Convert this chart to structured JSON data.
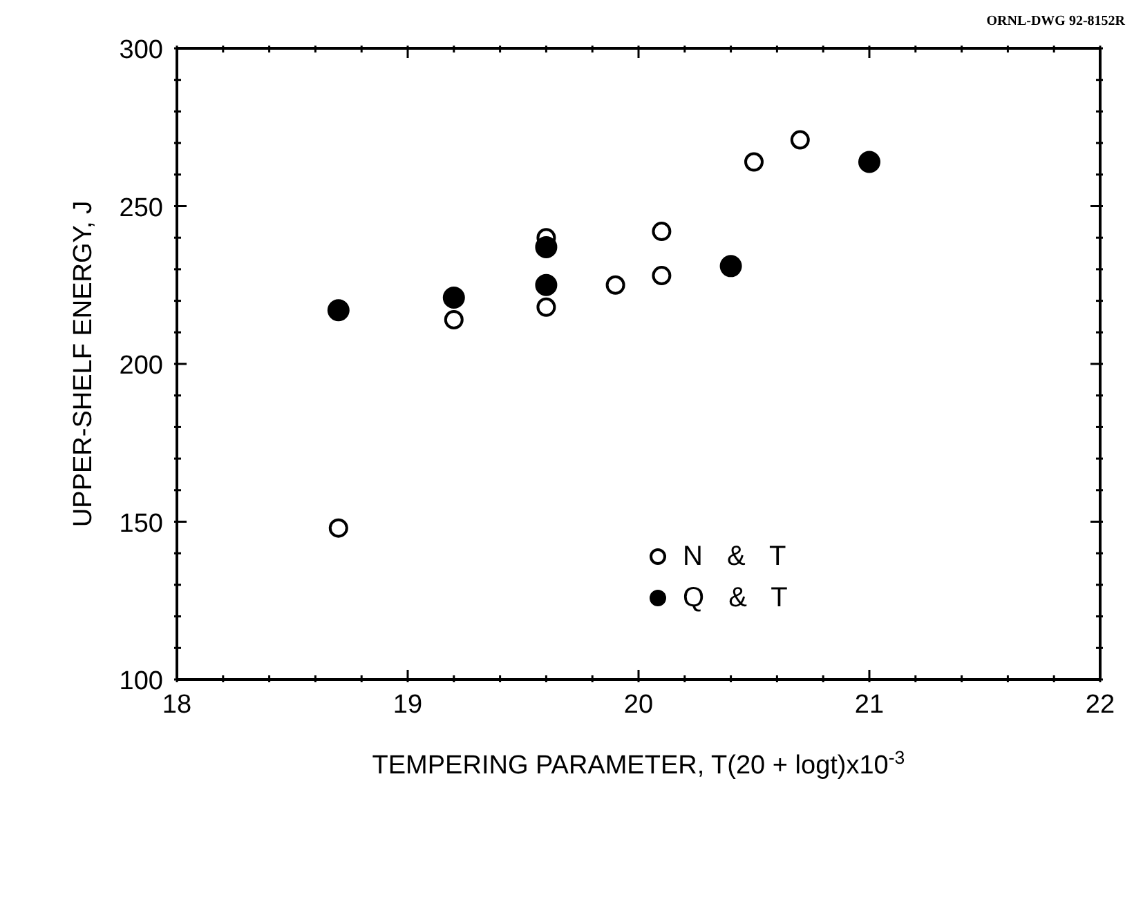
{
  "chart_data": {
    "type": "scatter",
    "xlabel": "TEMPERING PARAMETER, T(20 + logt)x10$^{-3}$",
    "ylabel": "UPPER-SHELF ENERGY, J",
    "annotations": [
      "ORNL-DWG 92-8152R"
    ],
    "series": [
      {
        "name": "N & T",
        "color": "#000000",
        "x": [
          18.7,
          19.2,
          19.6,
          19.6,
          19.9,
          20.1,
          20.1,
          20.5,
          20.7
        ],
        "values": [
          148,
          214,
          218,
          240,
          225,
          228,
          242,
          264,
          271
        ]
      },
      {
        "name": "Q & T",
        "color": "#000000",
        "x": [
          18.7,
          19.2,
          19.6,
          19.6,
          20.4,
          21.0
        ],
        "values": [
          217,
          221,
          225,
          237,
          231,
          264
        ]
      }
    ],
    "xlim": [
      18,
      22
    ],
    "xticks": [
      18,
      {
        "value": 18.2,
        "label": null
      },
      {
        "value": 18.4,
        "label": null
      },
      {
        "value": 18.6,
        "label": null
      },
      {
        "value": 18.8,
        "label": null
      },
      19,
      {
        "value": 19.2,
        "label": null
      },
      {
        "value": 19.4,
        "label": null
      },
      {
        "value": 19.6,
        "label": null
      },
      {
        "value": 19.8,
        "label": null
      },
      20,
      {
        "value": 20.2,
        "label": null
      },
      {
        "value": 20.4,
        "label": null
      },
      {
        "value": 20.6,
        "label": null
      },
      {
        "value": 20.8,
        "label": null
      },
      21,
      {
        "value": 21.2,
        "label": null
      },
      {
        "value": 21.4,
        "label": null
      },
      {
        "value": 21.6,
        "label": null
      },
      {
        "value": 21.8,
        "label": null
      },
      22
    ],
    "ylim": [
      100,
      300
    ],
    "yticks": [
      100,
      {
        "value": 110,
        "label": null
      },
      {
        "value": 120,
        "label": null
      },
      {
        "value": 130,
        "label": null
      },
      {
        "value": 140,
        "label": null
      },
      150,
      {
        "value": 160,
        "label": null
      },
      {
        "value": 170,
        "label": null
      },
      {
        "value": 180,
        "label": null
      },
      {
        "value": 190,
        "label": null
      },
      200,
      {
        "value": 210,
        "label": null
      },
      {
        "value": 220,
        "label": null
      },
      {
        "value": 230,
        "label": null
      },
      {
        "value": 240,
        "label": null
      },
      250,
      {
        "value": 260,
        "label": null
      },
      {
        "value": 270,
        "label": null
      },
      {
        "value": 280,
        "label": null
      },
      {
        "value": 290,
        "label": null
      },
      300
    ],
    "grid": false,
    "legend": "center",
    "marker": "circle"
  }
}
